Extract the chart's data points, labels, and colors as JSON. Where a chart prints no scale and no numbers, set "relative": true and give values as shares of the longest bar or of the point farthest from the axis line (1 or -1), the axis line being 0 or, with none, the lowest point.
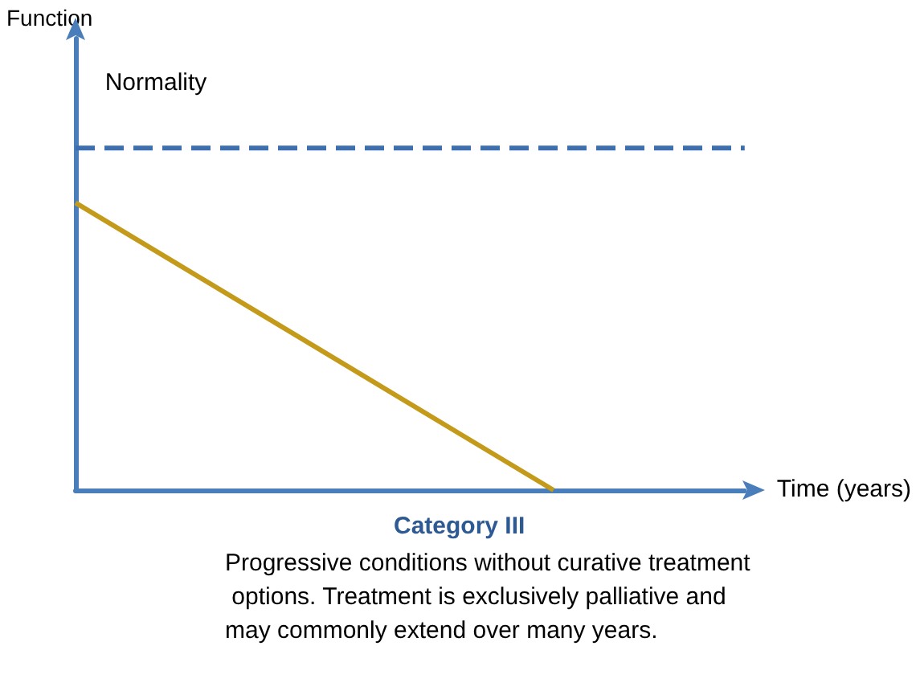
{
  "chart_data": {
    "type": "line",
    "relative": true,
    "xlabel": "Time (years)",
    "categories": [
      null,
      null,
      null,
      null,
      null,
      null,
      null,
      null
    ],
    "grid": false,
    "series": [
      {
        "name": "Normality",
        "color": "#3d6fb0",
        "line_style": "dashed",
        "values": [
          1,
          1,
          1,
          1,
          1,
          1,
          1,
          1
        ]
      },
      {
        "color": "#c49a1b",
        "line_style": "solid",
        "values": [
          0.84,
          0.672,
          0.504,
          0.336,
          0.168,
          0,
          null,
          null
        ]
      }
    ],
    "annotations": [
      "Function",
      "Category III",
      "Progressive conditions without curative treatment options. Treatment is exclusively palliative and may commonly extend over many years."
    ]
  }
}
